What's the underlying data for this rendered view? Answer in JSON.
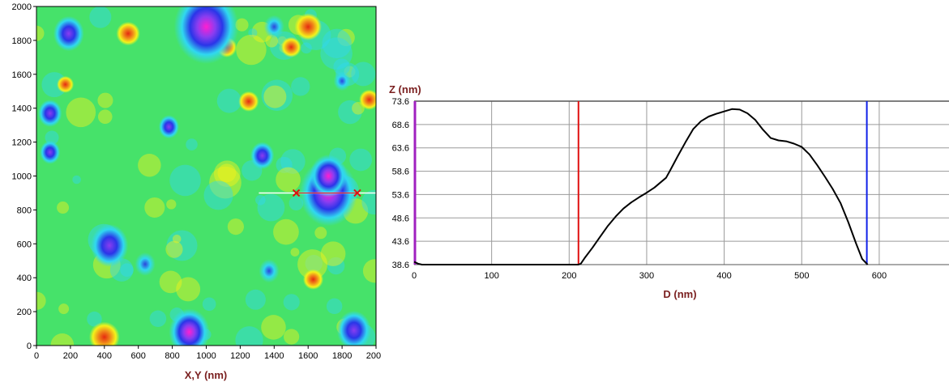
{
  "chart_data": [
    {
      "type": "heatmap",
      "title": "",
      "xlabel": "X,Y (nm)",
      "ylabel": "",
      "xlim": [
        0,
        2000
      ],
      "ylim": [
        0,
        2000
      ],
      "x_ticks": [
        "0",
        "200",
        "400",
        "600",
        "800",
        "1000",
        "1200",
        "1400",
        "1600",
        "1800",
        "2000"
      ],
      "y_ticks": [
        "0",
        "200",
        "400",
        "600",
        "800",
        "1000",
        "1200",
        "1400",
        "1600",
        "1800",
        "2000"
      ],
      "colormap": [
        "#ff1fd0",
        "#8a3df0",
        "#2a35e8",
        "#30d8f0",
        "#52e85a",
        "#f4f21a",
        "#f08a1a",
        "#e52a10"
      ],
      "background_color": "#46e26a",
      "features": [
        {
          "x": 1000,
          "y": 1880,
          "radius": 190,
          "depth": 1.0
        },
        {
          "x": 1720,
          "y": 900,
          "radius": 170,
          "depth": 1.0
        },
        {
          "x": 1720,
          "y": 1000,
          "radius": 110,
          "depth": 0.9
        },
        {
          "x": 430,
          "y": 590,
          "radius": 110,
          "depth": 0.8
        },
        {
          "x": 900,
          "y": 80,
          "radius": 120,
          "depth": 0.9
        },
        {
          "x": 80,
          "y": 1370,
          "radius": 70,
          "depth": 0.75
        },
        {
          "x": 80,
          "y": 1140,
          "radius": 60,
          "depth": 0.6
        },
        {
          "x": 190,
          "y": 1840,
          "radius": 90,
          "depth": 0.6
        },
        {
          "x": 1330,
          "y": 1120,
          "radius": 70,
          "depth": 0.65
        },
        {
          "x": 780,
          "y": 1290,
          "radius": 60,
          "depth": 0.55
        },
        {
          "x": 1870,
          "y": 90,
          "radius": 100,
          "depth": 0.7
        },
        {
          "x": 1400,
          "y": 1880,
          "radius": 60,
          "depth": 0.35
        },
        {
          "x": 1800,
          "y": 1560,
          "radius": 50,
          "depth": 0.45
        },
        {
          "x": 640,
          "y": 480,
          "radius": 60,
          "depth": 0.45
        },
        {
          "x": 1370,
          "y": 440,
          "radius": 60,
          "depth": 0.45
        }
      ],
      "peaks": [
        {
          "x": 400,
          "y": 50,
          "radius": 90
        },
        {
          "x": 540,
          "y": 1840,
          "radius": 70
        },
        {
          "x": 1600,
          "y": 1880,
          "radius": 80
        },
        {
          "x": 1500,
          "y": 1760,
          "radius": 60
        },
        {
          "x": 1630,
          "y": 390,
          "radius": 60
        },
        {
          "x": 1250,
          "y": 1440,
          "radius": 60
        },
        {
          "x": 170,
          "y": 1540,
          "radius": 50
        },
        {
          "x": 1120,
          "y": 1760,
          "radius": 60
        },
        {
          "x": 1960,
          "y": 1450,
          "radius": 60
        }
      ],
      "profile_line": {
        "x_start": 1310,
        "x_end": 2000,
        "y": 900,
        "marker_1_x": 1530,
        "marker_2_x": 1890
      },
      "profile_line_color": "#ffffff",
      "marker_color": "#e01010"
    },
    {
      "type": "line",
      "title": "",
      "xlabel": "D (nm)",
      "ylabel": "Z (nm)",
      "xlim": [
        0,
        690
      ],
      "ylim": [
        38.6,
        73.6
      ],
      "x_ticks": [
        "0",
        "100",
        "200",
        "300",
        "400",
        "500",
        "600"
      ],
      "y_ticks": [
        "38.6",
        "43.6",
        "48.6",
        "53.6",
        "58.6",
        "63.6",
        "68.6",
        "73.6"
      ],
      "grid": true,
      "line_color": "#000000",
      "series": [
        {
          "x": [
            0,
            5,
            10,
            100,
            200,
            212,
            215,
            220,
            230,
            240,
            250,
            260,
            270,
            280,
            290,
            300,
            310,
            320,
            325,
            330,
            340,
            350,
            360,
            370,
            380,
            390,
            400,
            410,
            420,
            430,
            440,
            450,
            460,
            470,
            480,
            490,
            500,
            510,
            520,
            530,
            540,
            550,
            560,
            570,
            578,
            585
          ],
          "y": [
            39.2,
            38.8,
            38.6,
            38.6,
            38.6,
            38.6,
            38.8,
            40.0,
            42.2,
            44.6,
            46.9,
            48.9,
            50.6,
            51.9,
            53.0,
            54.0,
            55.1,
            56.5,
            57.2,
            58.7,
            61.8,
            64.8,
            67.6,
            69.3,
            70.3,
            70.9,
            71.4,
            71.9,
            71.8,
            71.0,
            69.6,
            67.5,
            65.7,
            65.2,
            65.0,
            64.5,
            63.8,
            62.2,
            59.9,
            57.4,
            54.8,
            51.8,
            47.7,
            43.2,
            39.8,
            38.6
          ]
        }
      ],
      "cursor_1": {
        "x": 212,
        "color": "#e01010"
      },
      "cursor_2": {
        "x": 584,
        "color": "#1020e8"
      },
      "left_cursor_color": "#a020c0"
    }
  ]
}
